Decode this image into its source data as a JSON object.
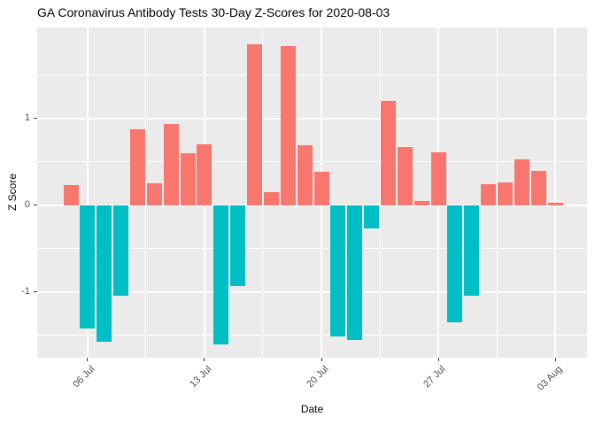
{
  "title": "GA Coronavirus Antibody Tests 30-Day Z-Scores for 2020-08-03",
  "chart_data": {
    "type": "bar",
    "title": "GA Coronavirus Antibody Tests 30-Day Z-Scores for 2020-08-03",
    "xlabel": "Date",
    "ylabel": "Z Score",
    "dates": [
      "2020-07-05",
      "2020-07-06",
      "2020-07-07",
      "2020-07-08",
      "2020-07-09",
      "2020-07-10",
      "2020-07-11",
      "2020-07-12",
      "2020-07-13",
      "2020-07-14",
      "2020-07-15",
      "2020-07-16",
      "2020-07-17",
      "2020-07-18",
      "2020-07-19",
      "2020-07-20",
      "2020-07-21",
      "2020-07-22",
      "2020-07-23",
      "2020-07-24",
      "2020-07-25",
      "2020-07-26",
      "2020-07-27",
      "2020-07-28",
      "2020-07-29",
      "2020-07-30",
      "2020-07-31",
      "2020-08-01",
      "2020-08-02",
      "2020-08-03"
    ],
    "values": [
      0.23,
      -1.42,
      -1.58,
      -1.04,
      0.88,
      0.25,
      0.94,
      0.6,
      0.7,
      -1.61,
      -0.93,
      1.86,
      0.15,
      1.84,
      0.69,
      0.39,
      -1.52,
      -1.56,
      -0.27,
      1.2,
      0.67,
      0.05,
      0.61,
      -1.35,
      -1.05,
      0.24,
      0.26,
      0.53,
      0.4,
      0.03
    ],
    "x_tick_labels": [
      "06 Jul",
      "13 Jul",
      "20 Jul",
      "27 Jul",
      "03 Aug"
    ],
    "x_tick_bar_index": [
      1,
      8,
      15,
      22,
      29
    ],
    "y_ticks": [
      "-1",
      "0",
      "1"
    ],
    "y_tick_values": [
      -1,
      0,
      1
    ],
    "y_minor_values": [
      -1.5,
      -0.5,
      0.5,
      1.5
    ],
    "ylim": [
      -1.76,
      2.05
    ],
    "grid": "on",
    "legend": "none",
    "positive_color": "#F8766D",
    "negative_color": "#00BFC4",
    "panel_background": "#EBEBEB",
    "grid_color": "#FFFFFF",
    "axis_text_color": "#4D4D4D",
    "tick_mark_color": "#333333"
  }
}
